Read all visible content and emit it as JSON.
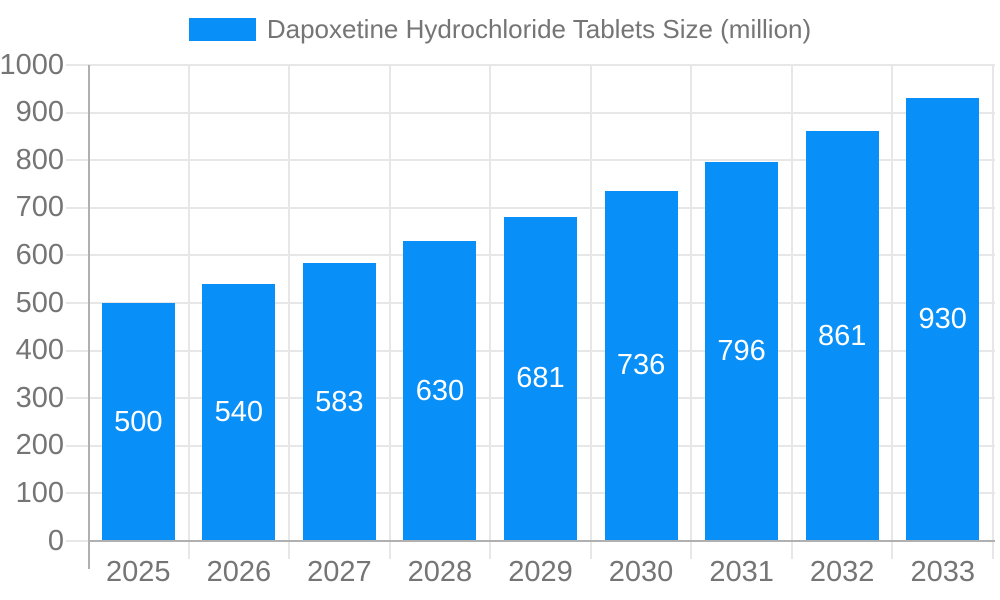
{
  "chart_data": {
    "type": "bar",
    "title": "",
    "categories": [
      "2025",
      "2026",
      "2027",
      "2028",
      "2029",
      "2030",
      "2031",
      "2032",
      "2033"
    ],
    "series": [
      {
        "name": "Dapoxetine Hydrochloride Tablets Size (million)",
        "values": [
          500,
          540,
          583,
          630,
          681,
          736,
          796,
          861,
          930
        ]
      }
    ],
    "xlabel": "",
    "ylabel": "",
    "ylim": [
      0,
      1000
    ],
    "y_tick_step": 100,
    "y_tick_labels": [
      "0",
      "100",
      "200",
      "300",
      "400",
      "500",
      "600",
      "700",
      "800",
      "900",
      "1000"
    ],
    "grid": true,
    "legend_position": "top-center",
    "bar_label_position": "inside-center"
  },
  "colors": {
    "bar": "#0990f8",
    "grid": "#e7e7e7",
    "axis": "#b0b0b0",
    "text": "#757575",
    "value_label": "#ffffff",
    "background": "#ffffff"
  }
}
